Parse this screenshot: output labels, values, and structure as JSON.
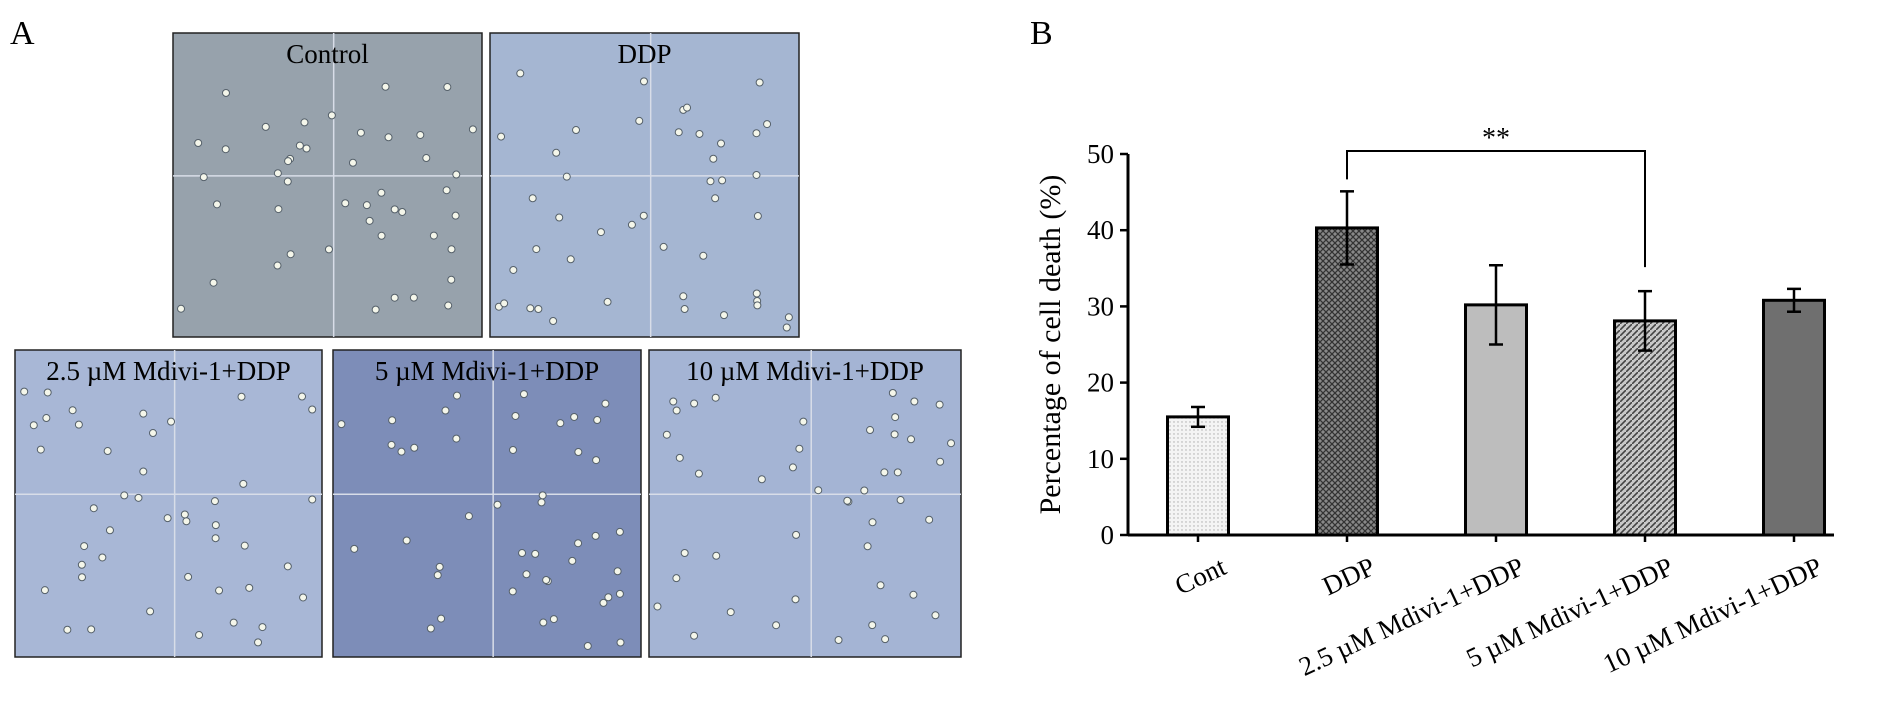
{
  "panel_a": {
    "label": "A",
    "images": [
      "Control",
      "DDP",
      "2.5 µM Mdivi-1+DDP",
      "5 µM Mdivi-1+DDP",
      "10 µM Mdivi-1+DDP"
    ]
  },
  "panel_b_label": "B",
  "chart_data": {
    "type": "bar",
    "categories": [
      "Cont",
      "DDP",
      "2.5 µM Mdivi-1+DDP",
      "5 µM Mdivi-1+DDP",
      "10 µM Mdivi-1+DDP"
    ],
    "values": [
      15.5,
      40.3,
      30.2,
      28.1,
      30.8
    ],
    "errors": [
      1.3,
      4.8,
      5.2,
      3.9,
      1.5
    ],
    "colors": [
      "#f2f2f2",
      "#6a6a6a",
      "#bdbdbd",
      "#9a9a9a",
      "#6f6f6f"
    ],
    "patterns": [
      "dots",
      "crosshatch",
      "solid",
      "diagonal",
      "solid"
    ],
    "y_label": "Percentage of cell death (%)",
    "annotation": "**",
    "ylim": [
      0,
      50
    ],
    "yticks": [
      0,
      10,
      20,
      30,
      40,
      50
    ]
  }
}
